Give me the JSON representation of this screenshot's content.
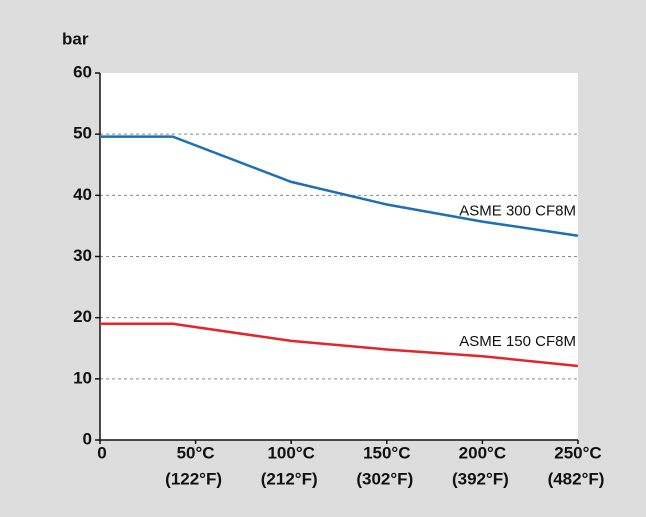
{
  "chart_data": {
    "type": "line",
    "y_label": "bar",
    "x": [
      0,
      38,
      100,
      150,
      200,
      250
    ],
    "series": [
      {
        "name": "ASME 300 CF8M",
        "color": "#1f6fb4",
        "values": [
          49.6,
          49.6,
          42.2,
          38.5,
          35.7,
          33.4
        ]
      },
      {
        "name": "ASME 150 CF8M",
        "color": "#e3262b",
        "values": [
          19.0,
          19.0,
          16.2,
          14.8,
          13.7,
          12.1
        ]
      }
    ],
    "xlim": [
      0,
      250
    ],
    "xticks": [
      0,
      {
        "value": 50,
        "label": "50°C"
      },
      {
        "value": 100,
        "label": "100°C"
      },
      {
        "value": 150,
        "label": "150°C"
      },
      {
        "value": 200,
        "label": "200°C"
      },
      {
        "value": 250,
        "label": "250°C"
      }
    ],
    "xtick_sublabels": [
      null,
      "(122°F)",
      "(212°F)",
      "(302°F)",
      "(392°F)",
      "(482°F)"
    ],
    "ylim": [
      0,
      60
    ],
    "yticks": [
      0,
      10,
      20,
      30,
      40,
      50,
      60
    ],
    "grid": true
  }
}
